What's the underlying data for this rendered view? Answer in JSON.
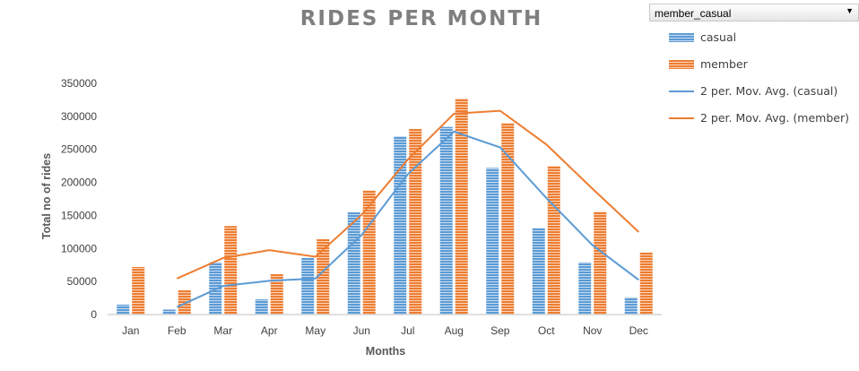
{
  "filter": {
    "value": "member_casual"
  },
  "chart_data": {
    "type": "bar",
    "title": "RIDES PER MONTH",
    "xlabel": "Months",
    "ylabel": "Total no of rides",
    "categories": [
      "Jan",
      "Feb",
      "Mar",
      "Apr",
      "May",
      "Jun",
      "Jul",
      "Aug",
      "Sep",
      "Oct",
      "Nov",
      "Dec"
    ],
    "ylim": [
      0,
      350000
    ],
    "yticks": [
      "0",
      "50000",
      "100000",
      "150000",
      "200000",
      "250000",
      "300000",
      "350000"
    ],
    "grid": false,
    "legend_position": "right",
    "series": [
      {
        "name": "casual",
        "kind": "bar",
        "color": "#5b9bd5",
        "values": [
          15000,
          7500,
          79000,
          23000,
          86000,
          155000,
          270000,
          284000,
          222000,
          131000,
          79000,
          26000
        ]
      },
      {
        "name": "member",
        "kind": "bar",
        "color": "#ed7d31",
        "values": [
          72000,
          37000,
          134000,
          61000,
          114000,
          188000,
          281000,
          327000,
          290000,
          225000,
          156000,
          94000
        ]
      },
      {
        "name": "2 per. Mov. Avg. (casual)",
        "kind": "line",
        "color": "#5b9bd5",
        "values": [
          null,
          11250,
          43250,
          51000,
          54500,
          120500,
          212500,
          277000,
          253000,
          176500,
          105000,
          52500
        ]
      },
      {
        "name": "2 per. Mov. Avg. (member)",
        "kind": "line",
        "color": "#ed7d31",
        "values": [
          null,
          54500,
          85500,
          97500,
          87500,
          151000,
          234500,
          304000,
          308500,
          257500,
          190500,
          125000
        ]
      }
    ]
  }
}
